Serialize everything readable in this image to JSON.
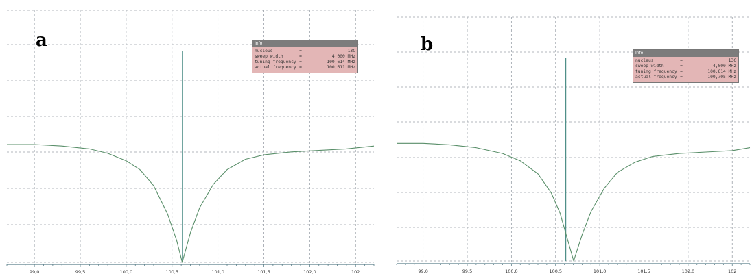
{
  "panels": [
    {
      "letter": "a",
      "info": {
        "title": "Info",
        "rows": [
          {
            "key": "nucleus",
            "value": "13C"
          },
          {
            "key": "sweep width",
            "value": "4,000 MHz"
          },
          {
            "key": "tuning frequency",
            "value": "100,614 MHz"
          },
          {
            "key": "actual frequency",
            "value": "100,611 MHz"
          }
        ]
      }
    },
    {
      "letter": "b",
      "info": {
        "title": "Info",
        "rows": [
          {
            "key": "nucleus",
            "value": "13C"
          },
          {
            "key": "sweep width",
            "value": "4,000 MHz"
          },
          {
            "key": "tuning frequency",
            "value": "100,614 MHz"
          },
          {
            "key": "actual frequency",
            "value": "100,705 MHz"
          }
        ]
      }
    }
  ],
  "chart_data": [
    {
      "type": "line",
      "title": "",
      "xlabel": "",
      "ylabel": "",
      "x_ticks": [
        "99,0",
        "99,5",
        "100,0",
        "100,5",
        "101,0",
        "101,5",
        "102,0",
        "102"
      ],
      "xlim": [
        98.7,
        102.7
      ],
      "ylim": [
        0,
        1
      ],
      "grid": true,
      "marker_x": 100.614,
      "colors": {
        "curve": "#5a8f6a",
        "marker": "#4f8f88",
        "grid": "#9aa0a8"
      },
      "series": [
        {
          "x": [
            98.7,
            99.0,
            99.3,
            99.6,
            99.8,
            100.0,
            100.15,
            100.3,
            100.45,
            100.55,
            100.611,
            100.7,
            100.8,
            100.95,
            101.1,
            101.3,
            101.5,
            101.8,
            102.1,
            102.4,
            102.7
          ],
          "y": [
            0.8,
            0.8,
            0.79,
            0.77,
            0.74,
            0.69,
            0.63,
            0.52,
            0.33,
            0.15,
            0.0,
            0.2,
            0.37,
            0.53,
            0.63,
            0.7,
            0.73,
            0.75,
            0.76,
            0.77,
            0.79
          ]
        }
      ]
    },
    {
      "type": "line",
      "title": "",
      "xlabel": "",
      "ylabel": "",
      "x_ticks": [
        "99,0",
        "99,5",
        "100,0",
        "100,5",
        "101,0",
        "101,5",
        "102,0",
        "102"
      ],
      "xlim": [
        98.7,
        102.7
      ],
      "ylim": [
        0,
        1
      ],
      "grid": true,
      "marker_x": 100.614,
      "colors": {
        "curve": "#5a8f6a",
        "marker": "#4f8f88",
        "grid": "#9aa0a8"
      },
      "series": [
        {
          "x": [
            98.7,
            99.0,
            99.3,
            99.6,
            99.9,
            100.1,
            100.3,
            100.45,
            100.55,
            100.62,
            100.705,
            100.8,
            100.9,
            101.05,
            101.2,
            101.4,
            101.6,
            101.9,
            102.2,
            102.5,
            102.7
          ],
          "y": [
            0.81,
            0.81,
            0.8,
            0.78,
            0.74,
            0.69,
            0.6,
            0.47,
            0.33,
            0.18,
            0.0,
            0.18,
            0.34,
            0.5,
            0.61,
            0.68,
            0.72,
            0.74,
            0.75,
            0.76,
            0.78
          ]
        }
      ]
    }
  ]
}
